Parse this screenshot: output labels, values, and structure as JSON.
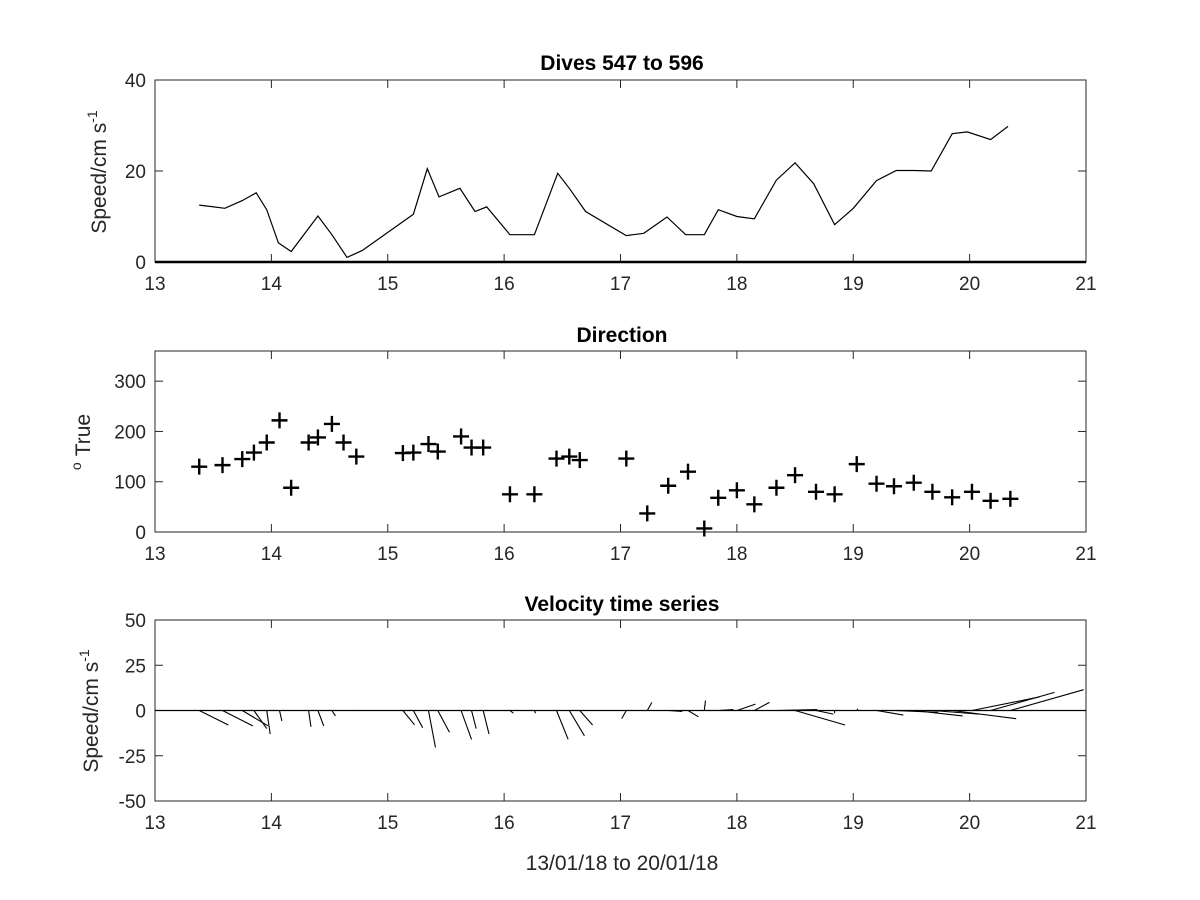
{
  "xlabel": "13/01/18 to 20/01/18",
  "chart_data": [
    {
      "type": "line",
      "title": "Dives 547 to 596",
      "ylabel": "Speed/cm s",
      "ylabel_sup": "-1",
      "xlim": [
        13,
        21
      ],
      "ylim": [
        0,
        40
      ],
      "xticks": [
        13,
        14,
        15,
        16,
        17,
        18,
        19,
        20,
        21
      ],
      "yticks": [
        0,
        20,
        40
      ],
      "x": [
        13.38,
        13.48,
        13.6,
        13.75,
        13.87,
        13.96,
        14.06,
        14.17,
        14.4,
        14.52,
        14.65,
        14.78,
        15.0,
        15.22,
        15.34,
        15.44,
        15.62,
        15.75,
        15.85,
        16.05,
        16.26,
        16.46,
        16.56,
        16.7,
        17.05,
        17.2,
        17.4,
        17.56,
        17.72,
        17.84,
        18.0,
        18.15,
        18.34,
        18.5,
        18.66,
        18.84,
        19.0,
        19.2,
        19.37,
        19.52,
        19.67,
        19.85,
        19.98,
        20.18,
        20.33
      ],
      "y": [
        12.5,
        12.2,
        11.8,
        13.5,
        15.2,
        11.5,
        4.2,
        2.3,
        10.1,
        6.0,
        1.0,
        2.5,
        6.5,
        10.5,
        20.5,
        14.3,
        16.2,
        11.1,
        12.1,
        6.0,
        6.0,
        19.5,
        16.2,
        11.1,
        5.8,
        6.3,
        9.9,
        6.0,
        6.0,
        11.5,
        10.0,
        9.5,
        18.0,
        21.8,
        17.2,
        8.2,
        11.8,
        17.9,
        20.1,
        20.1,
        20.0,
        28.2,
        28.6,
        26.9,
        29.8
      ]
    },
    {
      "type": "scatter",
      "marker": "+",
      "title": "Direction",
      "ylabel": "True",
      "ylabel_sup": "o",
      "xlim": [
        13,
        21
      ],
      "ylim": [
        0,
        360
      ],
      "xticks": [
        13,
        14,
        15,
        16,
        17,
        18,
        19,
        20,
        21
      ],
      "yticks": [
        0,
        100,
        200,
        300
      ],
      "x": [
        13.38,
        13.58,
        13.75,
        13.85,
        13.96,
        14.07,
        14.17,
        14.32,
        14.4,
        14.52,
        14.62,
        14.73,
        15.13,
        15.22,
        15.35,
        15.43,
        15.63,
        15.72,
        15.82,
        16.05,
        16.26,
        16.45,
        16.56,
        16.65,
        17.05,
        17.23,
        17.41,
        17.58,
        17.72,
        17.84,
        18.0,
        18.15,
        18.34,
        18.5,
        18.68,
        18.84,
        19.03,
        19.2,
        19.35,
        19.52,
        19.68,
        19.85,
        20.02,
        20.18,
        20.35
      ],
      "y": [
        130,
        133,
        145,
        158,
        178,
        222,
        88,
        178,
        188,
        215,
        178,
        150,
        157,
        158,
        175,
        160,
        190,
        168,
        168,
        75,
        75,
        146,
        150,
        143,
        146,
        37,
        92,
        120,
        7,
        68,
        83,
        55,
        88,
        113,
        80,
        75,
        135,
        96,
        91,
        98,
        80,
        69,
        80,
        62,
        66
      ]
    },
    {
      "type": "stick",
      "title": "Velocity time series",
      "ylabel": "Speed/cm s",
      "ylabel_sup": "-1",
      "xlim": [
        13,
        21
      ],
      "ylim": [
        -50,
        50
      ],
      "xticks": [
        13,
        14,
        15,
        16,
        17,
        18,
        19,
        20,
        21
      ],
      "yticks": [
        -50,
        -25,
        0,
        25,
        50
      ],
      "x": [
        13.38,
        13.58,
        13.75,
        13.85,
        13.96,
        14.07,
        14.32,
        14.4,
        14.52,
        14.62,
        14.73,
        15.13,
        15.22,
        15.35,
        15.43,
        15.63,
        15.72,
        15.82,
        16.05,
        16.26,
        16.45,
        16.56,
        16.65,
        17.05,
        17.23,
        17.41,
        17.58,
        17.72,
        17.84,
        18.0,
        18.15,
        18.34,
        18.5,
        18.68,
        18.84,
        19.03,
        19.2,
        19.35,
        19.52,
        19.68,
        19.85,
        20.02,
        20.18,
        20.35
      ],
      "u": [
        0.25,
        0.26,
        0.22,
        0.11,
        0.03,
        0.02,
        0.02,
        0.05,
        0.03,
        0.0,
        -0.01,
        0.1,
        0.08,
        0.06,
        0.1,
        0.09,
        0.04,
        0.05,
        0.03,
        0.01,
        0.1,
        0.13,
        0.11,
        -0.04,
        0.04,
        0.12,
        0.09,
        0.01,
        0.13,
        0.16,
        0.13,
        0.35,
        0.43,
        0.15,
        0.0,
        0.01,
        0.23,
        0.38,
        0.42,
        0.4,
        0.55,
        0.58,
        0.55,
        0.63
      ],
      "v": [
        -8.0,
        -8.5,
        -8.4,
        -10.0,
        -13.0,
        -5.8,
        -9.0,
        -8.5,
        -3.0,
        0.0,
        0.0,
        -7.9,
        -9.5,
        -20.4,
        -12.0,
        -16.0,
        -10.0,
        -13.0,
        -1.5,
        -1.5,
        -15.9,
        -14.0,
        -8.0,
        -4.5,
        4.5,
        -0.5,
        -3.5,
        5.5,
        0.5,
        3.5,
        4.5,
        0.5,
        -8.0,
        -2.0,
        -1.5,
        1.0,
        -2.5,
        -1.0,
        -3.0,
        -2.0,
        -4.5,
        7.5,
        10.0,
        11.5
      ]
    }
  ]
}
